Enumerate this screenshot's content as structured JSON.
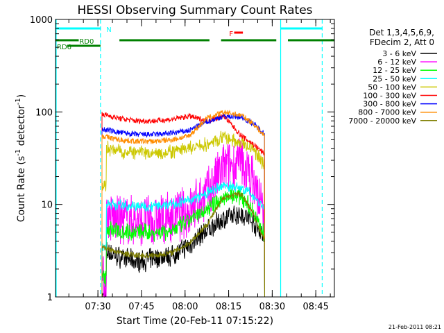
{
  "chart_data": {
    "type": "line",
    "title": "HESSI Observing Summary Count Rates",
    "xlabel": "Start Time (20-Feb-11 07:15:22)",
    "ylabel_main": "Count Rate (s",
    "ylabel_sup1": "-1",
    "ylabel_mid": " detector",
    "ylabel_sup2": "-1",
    "ylabel_end": ")",
    "yscale": "log",
    "ylim": [
      1,
      1000
    ],
    "xlim_minutes": [
      0,
      96
    ],
    "xticks": [
      {
        "label": "07:30",
        "m": 14.6
      },
      {
        "label": "07:45",
        "m": 29.6
      },
      {
        "label": "08:00",
        "m": 44.6
      },
      {
        "label": "08:15",
        "m": 59.6
      },
      {
        "label": "08:30",
        "m": 74.6
      },
      {
        "label": "08:45",
        "m": 89.6
      }
    ],
    "yticks": [
      {
        "label": "1",
        "v": 1
      },
      {
        "label": "10",
        "v": 10
      },
      {
        "label": "100",
        "v": 100
      },
      {
        "label": "1000",
        "v": 1000
      }
    ],
    "legend_header": [
      "Det 1,3,4,5,6,9,",
      "FDecim 2, Att 0"
    ],
    "legend_position": "right",
    "series": [
      {
        "name": "3 - 6 keV",
        "color": "#000000",
        "flare": 10,
        "night": 1.5,
        "values": [
          3.2,
          2.7,
          2.4,
          2.6,
          2.8,
          3.6,
          5.2,
          7.0,
          8.0,
          6.5,
          4.5
        ]
      },
      {
        "name": "6 - 12 keV",
        "color": "#ff00ff",
        "flare": 27,
        "night": 2,
        "values": [
          7.5,
          6.8,
          6.5,
          6.6,
          7.0,
          8.5,
          13,
          25,
          28,
          18,
          7.5
        ]
      },
      {
        "name": "12 - 25 keV",
        "color": "#00ff00",
        "flare": 8,
        "night": 1.2,
        "values": [
          5.5,
          5.2,
          5.0,
          5.0,
          5.2,
          6.5,
          9,
          12,
          12.5,
          8.5,
          4.5
        ]
      },
      {
        "name": "25 - 50 keV",
        "color": "#00ffff",
        "flare": 4,
        "night": 1,
        "values": [
          10.5,
          9.8,
          9.5,
          9.6,
          10.2,
          11,
          13,
          16,
          15,
          12.5,
          9
        ]
      },
      {
        "name": "50 - 100 keV",
        "color": "#ccc800",
        "flare": 6,
        "night": 0.8,
        "values": [
          42,
          38,
          36,
          36,
          37,
          40,
          44,
          53,
          46,
          40,
          27
        ]
      },
      {
        "name": "100 - 300 keV",
        "color": "#ff0000",
        "flare": 0,
        "night": 0,
        "values": [
          95,
          85,
          80,
          80,
          83,
          90,
          80,
          90,
          55,
          45,
          35
        ]
      },
      {
        "name": "300 - 800 keV",
        "color": "#0000ff",
        "flare": 0,
        "night": 0,
        "values": [
          65,
          60,
          57,
          57,
          59,
          63,
          78,
          90,
          88,
          75,
          58
        ]
      },
      {
        "name": "800 - 7000 keV",
        "color": "#ff8c00",
        "flare": 0,
        "night": 0,
        "values": [
          55,
          50,
          48,
          48,
          50,
          55,
          85,
          99,
          92,
          75,
          55
        ]
      },
      {
        "name": "7000 - 20000 keV",
        "color": "#7f7f00",
        "flare": 0,
        "night": 0,
        "values": [
          3.5,
          3.0,
          2.8,
          2.8,
          3.0,
          3.8,
          6,
          12,
          13,
          8,
          4
        ]
      }
    ],
    "data_time_minutes": [
      16,
      22,
      28,
      34,
      40,
      46,
      52,
      58,
      64,
      68,
      72
    ],
    "night_intervals_minutes": [
      [
        16,
        17.5
      ]
    ],
    "cyan_vertical_lines_minutes": [
      {
        "m": -2,
        "style": "solid"
      },
      {
        "m": 15.5,
        "style": "dashed"
      },
      {
        "m": 77.5,
        "style": "solid"
      },
      {
        "m": 91.8,
        "style": "dashed"
      }
    ],
    "flags": [
      {
        "label": "N",
        "color": "#00ffff",
        "row": 1,
        "segments": [
          [
            -2,
            15.5
          ],
          [
            77.5,
            91.8
          ]
        ],
        "label_at": 17.5
      },
      {
        "label": "F",
        "color": "#ff0000",
        "row": 2,
        "segments": [
          [
            61.5,
            64.5
          ]
        ],
        "label_at": 59.8
      },
      {
        "label": "RD0",
        "color": "#008000",
        "row": 3,
        "segments": [
          [
            -2,
            8
          ],
          [
            22,
            53
          ],
          [
            57,
            76
          ],
          [
            80,
            96
          ]
        ],
        "label_at": 8.2
      },
      {
        "label": "RD6",
        "color": "#008000",
        "row": 4,
        "segments": [
          [
            4,
            15.5
          ]
        ],
        "label_at": -2
      }
    ],
    "timestamp": "21-Feb-2011 08:21"
  }
}
